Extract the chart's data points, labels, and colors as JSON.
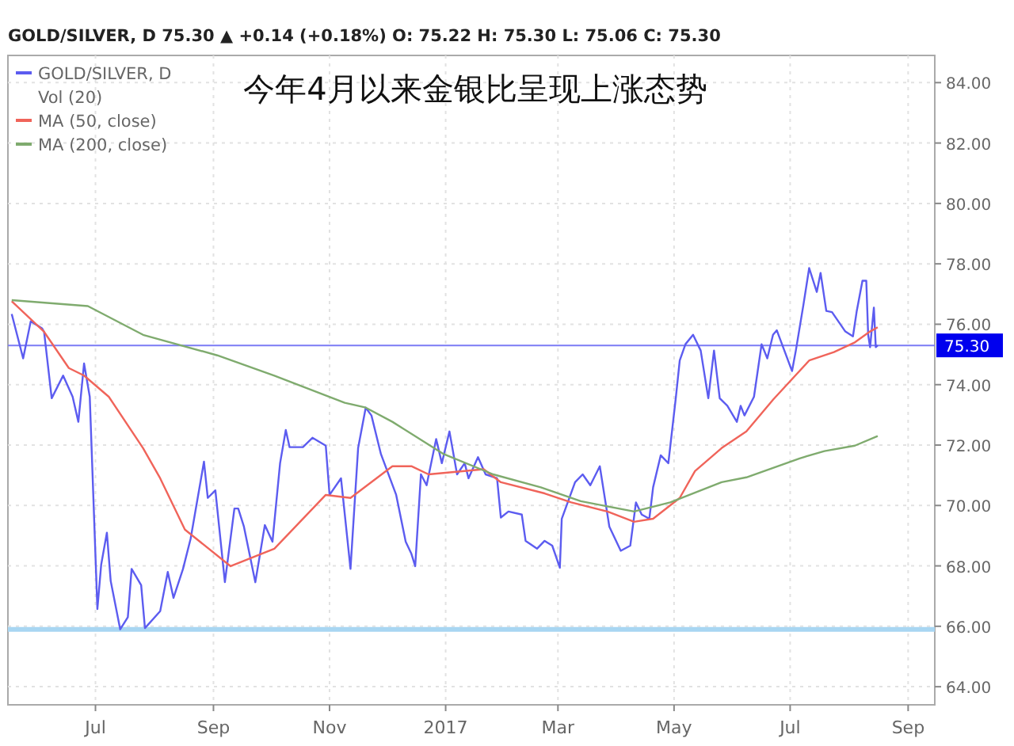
{
  "chart_data": {
    "type": "line",
    "title": "今年4月以来金银比呈现上涨态势",
    "subtitle": "GOLD/SILVER, D  75.30 ▲ +0.14 (+0.18%)  O: 75.22 H: 75.30 L: 75.06 C: 75.30",
    "annotations": [
      "Vol (20)"
    ],
    "xlim": [
      "2016-05-16",
      "2017-09-15"
    ],
    "xticks": [
      {
        "value": "2016-07-01",
        "label": "Jul"
      },
      {
        "value": "2016-09-01",
        "label": "Sep"
      },
      {
        "value": "2016-11-01",
        "label": "Nov"
      },
      {
        "value": "2017-01-01",
        "label": "2017"
      },
      {
        "value": "2017-03-01",
        "label": "Mar"
      },
      {
        "value": "2017-05-01",
        "label": "May"
      },
      {
        "value": "2017-07-01",
        "label": "Jul"
      },
      {
        "value": "2017-09-01",
        "label": "Sep"
      }
    ],
    "ylim": [
      63.4,
      84.9
    ],
    "yticks": [
      {
        "value": 64,
        "label": "64.00"
      },
      {
        "value": 66,
        "label": "66.00"
      },
      {
        "value": 68,
        "label": "68.00"
      },
      {
        "value": 70,
        "label": "70.00"
      },
      {
        "value": 72,
        "label": "72.00"
      },
      {
        "value": 74,
        "label": "74.00"
      },
      {
        "value": 76,
        "label": "76.00"
      },
      {
        "value": 78,
        "label": "78.00"
      },
      {
        "value": 80,
        "label": "80.00"
      },
      {
        "value": 82,
        "label": "82.00"
      },
      {
        "value": 84,
        "label": "84.00"
      }
    ],
    "grid": true,
    "legend": "top left",
    "line_style": "solid",
    "ref_lines": [
      {
        "axis": "y",
        "value": 75.3,
        "label": "75.30",
        "color": "#7b7bf5"
      },
      {
        "axis": "y",
        "value": 65.9,
        "color": "#a8d6f2"
      }
    ],
    "series": [
      {
        "name": "GOLD/SILVER, D",
        "color": "#5c5cf0",
        "x": [
          "2016-05-18",
          "2016-05-24",
          "2016-05-28",
          "2016-06-03",
          "2016-06-04",
          "2016-06-08",
          "2016-06-14",
          "2016-06-19",
          "2016-06-22",
          "2016-06-25",
          "2016-06-28",
          "2016-07-02",
          "2016-07-04",
          "2016-07-07",
          "2016-07-09",
          "2016-07-14",
          "2016-07-18",
          "2016-07-20",
          "2016-07-25",
          "2016-07-27",
          "2016-08-04",
          "2016-08-08",
          "2016-08-11",
          "2016-08-16",
          "2016-08-20",
          "2016-08-27",
          "2016-08-29",
          "2016-09-02",
          "2016-09-07",
          "2016-09-12",
          "2016-09-14",
          "2016-09-17",
          "2016-09-23",
          "2016-09-28",
          "2016-10-02",
          "2016-10-06",
          "2016-10-09",
          "2016-10-11",
          "2016-10-18",
          "2016-10-23",
          "2016-10-30",
          "2016-11-01",
          "2016-11-07",
          "2016-11-12",
          "2016-11-16",
          "2016-11-20",
          "2016-11-23",
          "2016-11-28",
          "2016-12-06",
          "2016-12-11",
          "2016-12-14",
          "2016-12-16",
          "2016-12-19",
          "2016-12-22",
          "2016-12-27",
          "2016-12-30",
          "2017-01-03",
          "2017-01-07",
          "2017-01-11",
          "2017-01-13",
          "2017-01-18",
          "2017-01-22",
          "2017-01-28",
          "2017-01-30",
          "2017-02-03",
          "2017-02-10",
          "2017-02-12",
          "2017-02-18",
          "2017-02-22",
          "2017-02-26",
          "2017-03-02",
          "2017-03-03",
          "2017-03-10",
          "2017-03-14",
          "2017-03-18",
          "2017-03-23",
          "2017-03-28",
          "2017-04-03",
          "2017-04-08",
          "2017-04-11",
          "2017-04-14",
          "2017-04-18",
          "2017-04-20",
          "2017-04-24",
          "2017-04-28",
          "2017-05-02",
          "2017-05-04",
          "2017-05-07",
          "2017-05-11",
          "2017-05-15",
          "2017-05-19",
          "2017-05-22",
          "2017-05-25",
          "2017-05-29",
          "2017-06-03",
          "2017-06-05",
          "2017-06-07",
          "2017-06-12",
          "2017-06-16",
          "2017-06-19",
          "2017-06-22",
          "2017-06-24",
          "2017-07-02",
          "2017-07-04",
          "2017-07-08",
          "2017-07-11",
          "2017-07-15",
          "2017-07-17",
          "2017-07-20",
          "2017-07-23",
          "2017-07-30",
          "2017-08-03",
          "2017-08-05",
          "2017-08-08",
          "2017-08-10",
          "2017-08-11",
          "2017-08-12",
          "2017-08-14",
          "2017-08-15",
          "2017-08-16"
        ],
        "values": [
          76.34,
          74.87,
          76.1,
          75.86,
          75.75,
          73.55,
          74.3,
          73.6,
          72.77,
          74.7,
          73.6,
          66.57,
          68.04,
          69.1,
          67.5,
          65.9,
          66.3,
          67.9,
          67.36,
          65.94,
          66.5,
          67.8,
          66.94,
          67.9,
          68.9,
          71.45,
          70.25,
          70.5,
          67.46,
          69.9,
          69.9,
          69.3,
          67.46,
          69.35,
          68.8,
          71.4,
          72.5,
          71.93,
          71.93,
          72.24,
          71.98,
          70.35,
          70.9,
          67.9,
          71.9,
          73.24,
          72.98,
          71.7,
          70.35,
          68.8,
          68.4,
          67.99,
          71.03,
          70.67,
          72.2,
          71.4,
          72.45,
          71.03,
          71.4,
          70.9,
          71.6,
          71.03,
          70.9,
          69.6,
          69.8,
          69.7,
          68.83,
          68.57,
          68.83,
          68.67,
          67.94,
          69.56,
          70.77,
          71.03,
          70.67,
          71.3,
          69.3,
          68.5,
          68.67,
          70.1,
          69.7,
          69.56,
          70.6,
          71.66,
          71.4,
          73.6,
          74.8,
          75.34,
          75.65,
          75.13,
          73.55,
          75.13,
          73.55,
          73.3,
          72.77,
          73.3,
          72.98,
          73.6,
          75.34,
          74.87,
          75.65,
          75.8,
          74.45,
          75.13,
          76.65,
          77.86,
          77.07,
          77.7,
          76.44,
          76.4,
          75.76,
          75.6,
          76.44,
          77.44,
          77.44,
          75.65,
          75.24,
          76.55,
          75.24,
          75.3
        ]
      },
      {
        "name": "MA (50, close)",
        "color": "#f0645a",
        "x": [
          "2016-05-18",
          "2016-06-04",
          "2016-06-17",
          "2016-06-25",
          "2016-07-08",
          "2016-07-26",
          "2016-08-04",
          "2016-08-17",
          "2016-09-10",
          "2016-10-03",
          "2016-10-30",
          "2016-11-12",
          "2016-12-04",
          "2016-12-14",
          "2016-12-23",
          "2017-01-21",
          "2017-01-30",
          "2017-02-22",
          "2017-03-08",
          "2017-03-27",
          "2017-04-10",
          "2017-04-20",
          "2017-05-04",
          "2017-05-12",
          "2017-05-26",
          "2017-06-08",
          "2017-06-22",
          "2017-07-11",
          "2017-07-24",
          "2017-08-04",
          "2017-08-12",
          "2017-08-16"
        ],
        "values": [
          76.76,
          75.75,
          74.55,
          74.3,
          73.6,
          71.9,
          70.9,
          69.2,
          67.99,
          68.57,
          70.35,
          70.25,
          71.3,
          71.3,
          71.03,
          71.2,
          70.77,
          70.4,
          70.1,
          69.8,
          69.46,
          69.56,
          70.25,
          71.14,
          71.9,
          72.45,
          73.5,
          74.8,
          75.08,
          75.4,
          75.76,
          75.9
        ]
      },
      {
        "name": "MA (200, close)",
        "color": "#7fab6e",
        "x": [
          "2016-05-18",
          "2016-06-27",
          "2016-07-26",
          "2016-09-03",
          "2016-10-03",
          "2016-11-09",
          "2016-11-20",
          "2016-12-04",
          "2016-12-31",
          "2017-01-26",
          "2017-02-20",
          "2017-03-13",
          "2017-04-10",
          "2017-04-29",
          "2017-05-26",
          "2017-06-08",
          "2017-07-06",
          "2017-07-19",
          "2017-08-04",
          "2017-08-16"
        ],
        "values": [
          76.8,
          76.6,
          75.65,
          74.97,
          74.3,
          73.4,
          73.24,
          72.77,
          71.7,
          71.03,
          70.6,
          70.14,
          69.8,
          70.1,
          70.77,
          70.93,
          71.56,
          71.8,
          71.98,
          72.3
        ]
      }
    ]
  }
}
